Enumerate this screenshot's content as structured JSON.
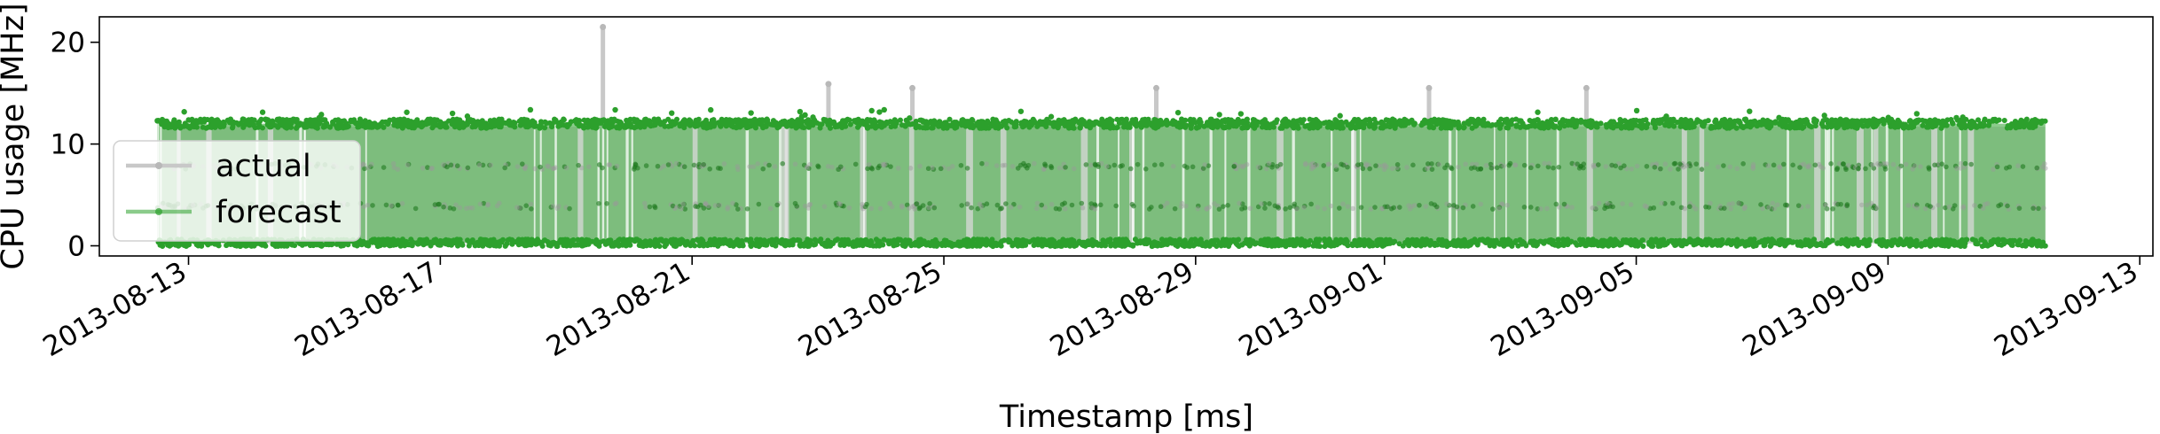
{
  "chart_data": {
    "type": "line",
    "xlabel": "Timestamp [ms]",
    "ylabel": "CPU usage [MHz]",
    "ylim": [
      -1,
      22.5
    ],
    "x_range": [
      "2013-08-11T14:00",
      "2013-09-13T05:00"
    ],
    "data_range": [
      "2013-08-12T12:00",
      "2013-09-11T12:00"
    ],
    "y_ticks": [
      {
        "value": 0,
        "label": "0"
      },
      {
        "value": 10,
        "label": "10"
      },
      {
        "value": 20,
        "label": "20"
      }
    ],
    "x_ticks": [
      {
        "date": "2013-08-13",
        "label": "2013-08-13"
      },
      {
        "date": "2013-08-17",
        "label": "2013-08-17"
      },
      {
        "date": "2013-08-21",
        "label": "2013-08-21"
      },
      {
        "date": "2013-08-25",
        "label": "2013-08-25"
      },
      {
        "date": "2013-08-29",
        "label": "2013-08-29"
      },
      {
        "date": "2013-09-01",
        "label": "2013-09-01"
      },
      {
        "date": "2013-09-05",
        "label": "2013-09-05"
      },
      {
        "date": "2013-09-09",
        "label": "2013-09-09"
      },
      {
        "date": "2013-09-13",
        "label": "2013-09-13"
      }
    ],
    "series": [
      {
        "name": "actual",
        "color": "#c8c8c8",
        "baseline_high": 11.7,
        "baseline_low": 0.2,
        "secondary_levels": [
          3.9,
          7.8
        ],
        "spikes": [
          {
            "date": "2013-08-19T14:00",
            "value": 21.5
          },
          {
            "date": "2013-08-23T04:00",
            "value": 15.9
          },
          {
            "date": "2013-08-24T12:00",
            "value": 15.5
          },
          {
            "date": "2013-08-28T09:00",
            "value": 15.5
          },
          {
            "date": "2013-09-01T17:00",
            "value": 15.5
          },
          {
            "date": "2013-09-04T05:00",
            "value": 15.5
          }
        ]
      },
      {
        "name": "forecast",
        "color": "#2ca02c",
        "upper_level": 12.0,
        "lower_level": 0.3,
        "secondary_levels": [
          3.9,
          7.8
        ]
      }
    ],
    "legend": {
      "position": "lower-left"
    }
  }
}
